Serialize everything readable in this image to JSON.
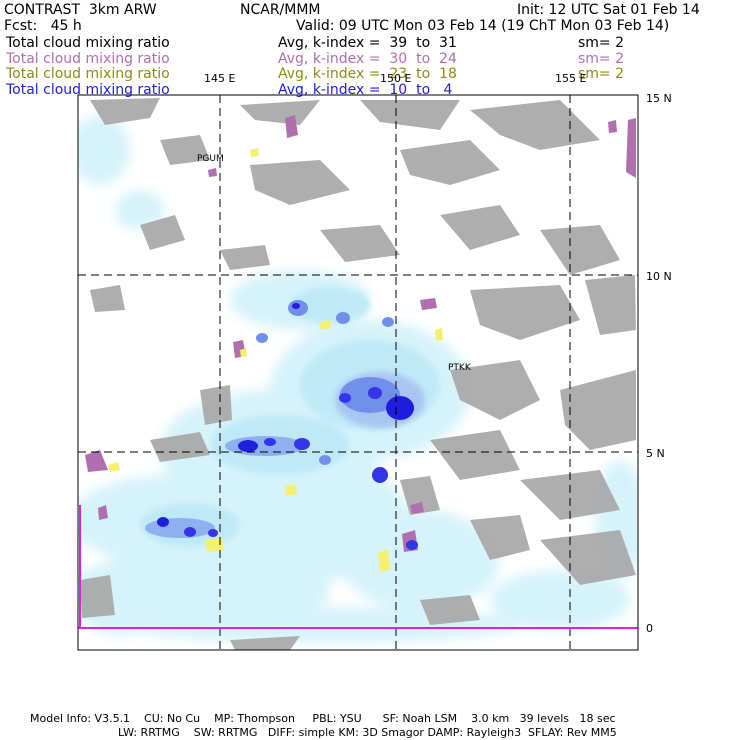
{
  "header": {
    "model": "CONTRAST  3km ARW",
    "org": "NCAR/MMM",
    "init": "Init: 12 UTC Sat 01 Feb 14",
    "fcst": "Fcst:   45 h",
    "valid": "Valid: 09 UTC Mon 03 Feb 14 (19 ChT Mon 03 Feb 14)"
  },
  "layers": [
    {
      "label": "Total cloud mixing ratio",
      "avg": "Avg, k-index =  39  to  31",
      "sm": "sm= 2",
      "color": "#000000"
    },
    {
      "label": "Total cloud mixing ratio",
      "avg": "Avg, k-index =  30  to  24",
      "sm": "sm= 2",
      "color": "#b070b0"
    },
    {
      "label": "Total cloud mixing ratio",
      "avg": "Avg, k-index =  23  to  18",
      "sm": "sm= 2",
      "color": "#8c8c14"
    },
    {
      "label": "Total cloud mixing ratio",
      "avg": "Avg, k-index =  10  to   4",
      "sm": "",
      "color": "#1e1edc"
    }
  ],
  "map": {
    "lon_labels": [
      "145 E",
      "150 E",
      "155 E"
    ],
    "lat_labels": [
      "15 N",
      "10 N",
      "5 N",
      "0"
    ],
    "stations": [
      "PGUM",
      "PTKK"
    ]
  },
  "footer": {
    "line1": "Model Info: V3.5.1    CU: No Cu    MP: Thompson     PBL: YSU      SF: Noah LSM    3.0 km   39 levels   18 sec",
    "line2": "LW: RRTMG    SW: RRTMG   DIFF: simple KM: 3D Smagor DAMP: Rayleigh3  SFLAY: Rev MM5"
  }
}
